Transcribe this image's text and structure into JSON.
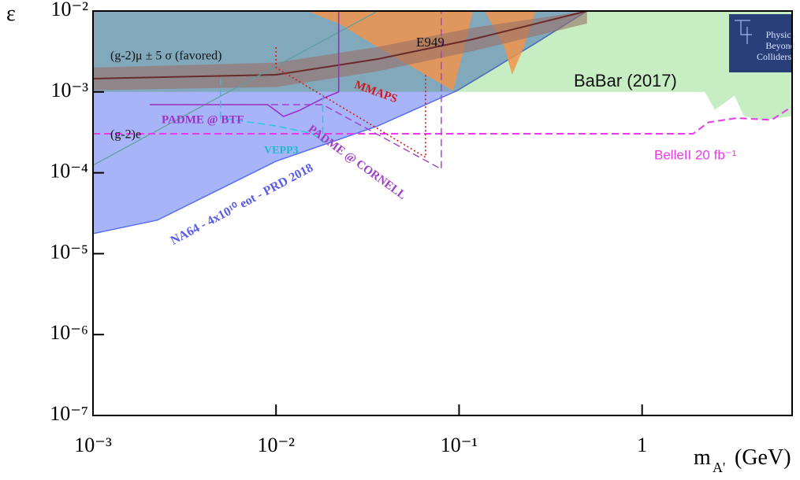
{
  "chart_data": {
    "type": "exclusion",
    "x_label": "m",
    "x_label_sub": "A'",
    "x_label_unit": "(GeV)",
    "y_label": "ε",
    "xscale": "log",
    "yscale": "log",
    "xlim": [
      0.001,
      6.6
    ],
    "ylim": [
      1e-07,
      0.01
    ],
    "xticks": [
      {
        "value": 0.001,
        "label": "10⁻³"
      },
      {
        "value": 0.01,
        "label": "10⁻²"
      },
      {
        "value": 0.1,
        "label": "10⁻¹"
      },
      1
    ],
    "yticks": [
      {
        "value": 1e-07,
        "label": "10⁻⁷"
      },
      {
        "value": 1e-06,
        "label": "10⁻⁶"
      },
      {
        "value": 1e-05,
        "label": "10⁻⁵"
      },
      {
        "value": 0.0001,
        "label": "10⁻⁴"
      },
      {
        "value": 0.001,
        "label": "10⁻³"
      },
      {
        "value": 0.01,
        "label": "10⁻²"
      }
    ],
    "series": [
      {
        "fill": "above",
        "color": "#c6eec2",
        "x": [
          0.001,
          2.2,
          2.5,
          3.2,
          3.6,
          4.5,
          6.6
        ],
        "values": [
          0.001,
          0.001,
          0.0006,
          0.0009,
          0.0005,
          0.00045,
          0.0005
        ]
      },
      {
        "fill": "above",
        "color": "#a8b4f8",
        "edge": "#5b6ef0",
        "blend": "multiply",
        "x": [
          0.001,
          0.00225,
          0.01,
          0.036,
          0.098,
          0.262,
          0.5
        ],
        "values": [
          1.77e-05,
          2.6e-05,
          0.000139,
          0.00038,
          0.00104,
          0.004,
          0.01
        ]
      },
      {
        "fill": "closed",
        "color": "#f0944c",
        "x": [
          0.0148,
          0.119,
          0.107,
          0.0927,
          0.0656,
          0.036,
          0.022
        ],
        "values": [
          0.01,
          0.01,
          0.00357,
          0.00104,
          0.00163,
          0.00357,
          0.007
        ]
      },
      {
        "fill": "closed",
        "color": "#f0944c",
        "x": [
          0.138,
          0.177,
          0.195,
          0.226,
          0.262
        ],
        "values": [
          0.01,
          0.00357,
          0.00163,
          0.00357,
          0.01
        ]
      },
      {
        "fill": "band",
        "color": "#9a7068",
        "edge": "#6a2a2a",
        "x": [
          0.001,
          0.01,
          0.036,
          0.119,
          0.5
        ],
        "values": [
          0.00146,
          0.00163,
          0.00255,
          0.00447,
          0.01
        ],
        "lower": [
          0.00105,
          0.00115,
          0.0018,
          0.0032,
          0.007
        ],
        "upper": [
          0.002,
          0.0023,
          0.0036,
          0.0062,
          0.01
        ]
      },
      {
        "line": "solid",
        "color": "#5d9d9d",
        "x": [
          0.001,
          0.036
        ],
        "values": [
          0.000124,
          0.01
        ]
      },
      {
        "line": "dashed",
        "color": "#e83ce8",
        "width": 2,
        "x": [
          0.001,
          1.9,
          2.3,
          3.3,
          5.1,
          6.6
        ],
        "values": [
          0.000304,
          0.000304,
          0.00042,
          0.000475,
          0.00045,
          0.00066
        ]
      },
      {
        "line": "solid",
        "color": "#9b30c8",
        "width": 1.6,
        "x": [
          0.00204,
          0.009,
          0.011,
          0.0134,
          0.018,
          0.022,
          0.022
        ],
        "values": [
          0.000695,
          0.000695,
          0.000497,
          0.00059,
          0.00083,
          0.001,
          0.01
        ]
      },
      {
        "line": "dashed",
        "color": "#a040c8",
        "width": 1.4,
        "x": [
          0.00204,
          0.018,
          0.08,
          0.08
        ],
        "values": [
          0.000695,
          0.000695,
          0.000111,
          0.01
        ]
      },
      {
        "line": "dotted",
        "color": "#cc1c1c",
        "width": 1.6,
        "x": [
          0.01,
          0.01,
          0.0656,
          0.0656
        ],
        "values": [
          0.00357,
          0.002,
          0.000155,
          0.00163
        ]
      },
      {
        "line": "dashed",
        "color": "#20c8d8",
        "width": 1.4,
        "x": [
          0.00497,
          0.00497,
          0.01,
          0.016,
          0.018,
          0.018
        ],
        "values": [
          0.00146,
          0.000475,
          0.00038,
          0.000304,
          0.00024,
          0.001
        ]
      }
    ],
    "annotations": [
      {
        "text": "(g-2)μ ± 5 σ (favored)",
        "color": "#111111"
      },
      {
        "text": "E949",
        "color": "#111111"
      },
      {
        "text": "BaBar (2017)",
        "color": "#111111"
      },
      {
        "text": "MMAPS",
        "color": "#cc1c1c"
      },
      {
        "text": "PADME @ BTF",
        "color": "#9b30c8"
      },
      {
        "text": "(g-2)e",
        "color": "#111111"
      },
      {
        "text": "VEPP3",
        "color": "#20b8c8"
      },
      {
        "text": "PADME @ CORNELL",
        "color": "#a040c8"
      },
      {
        "text": "NA64 - 4x10¹⁰ eot -  PRD 2018",
        "color": "#5a5ae8"
      },
      {
        "text": "BelleII 20 fb⁻¹",
        "color": "#e83ce8"
      }
    ],
    "logo": [
      "Physics",
      "Beyond",
      "Colliders"
    ]
  }
}
